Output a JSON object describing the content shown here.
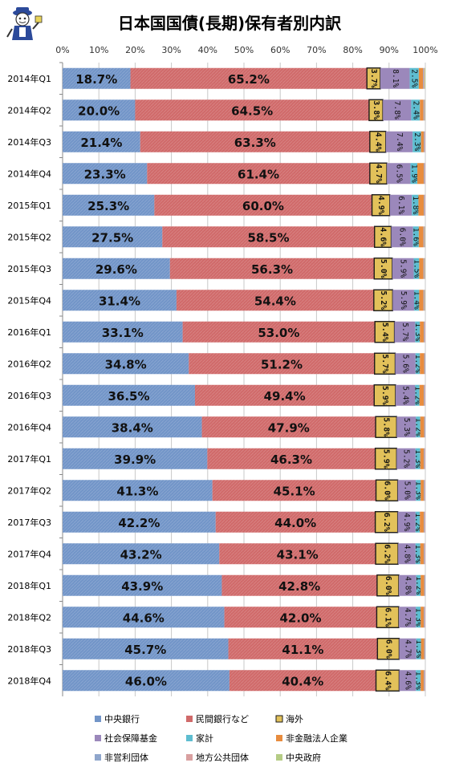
{
  "chart_data": {
    "type": "bar",
    "orientation": "horizontal",
    "stacked": true,
    "percent_stacked": true,
    "title": "日本国国債(長期)保有者別内訳",
    "xlim": [
      0,
      100
    ],
    "x_ticks": [
      "0%",
      "10%",
      "20%",
      "30%",
      "40%",
      "50%",
      "60%",
      "70%",
      "80%",
      "90%",
      "100%"
    ],
    "categories": [
      "2014年Q1",
      "2014年Q2",
      "2014年Q3",
      "2014年Q4",
      "2015年Q1",
      "2015年Q2",
      "2015年Q3",
      "2015年Q4",
      "2016年Q1",
      "2016年Q2",
      "2016年Q3",
      "2016年Q4",
      "2017年Q1",
      "2017年Q2",
      "2017年Q3",
      "2017年Q4",
      "2018年Q1",
      "2018年Q2",
      "2018年Q3",
      "2018年Q4"
    ],
    "series": [
      {
        "name": "中央銀行",
        "color": "#7295c8",
        "values": [
          18.7,
          20.0,
          21.4,
          23.3,
          25.3,
          27.5,
          29.6,
          31.4,
          33.1,
          34.8,
          36.5,
          38.4,
          39.9,
          41.3,
          42.2,
          43.2,
          43.9,
          44.6,
          45.7,
          46.0
        ]
      },
      {
        "name": "民間銀行など",
        "color": "#d06a6a",
        "values": [
          65.2,
          64.5,
          63.3,
          61.4,
          60.0,
          58.5,
          56.3,
          54.4,
          53.0,
          51.2,
          49.4,
          47.9,
          46.3,
          45.1,
          44.0,
          43.1,
          42.8,
          42.0,
          41.1,
          40.4
        ]
      },
      {
        "name": "海外",
        "color": "#e2c15a",
        "values": [
          3.7,
          3.8,
          4.4,
          4.7,
          4.9,
          4.6,
          5.0,
          5.2,
          5.4,
          5.7,
          5.9,
          5.8,
          5.9,
          6.0,
          6.2,
          6.2,
          6.0,
          6.1,
          6.0,
          6.4
        ]
      },
      {
        "name": "社会保障基金",
        "color": "#9b88bb",
        "values": [
          8.1,
          7.8,
          7.4,
          6.5,
          6.1,
          6.0,
          5.9,
          5.9,
          5.7,
          5.6,
          5.4,
          5.3,
          5.2,
          5.0,
          4.9,
          4.8,
          4.8,
          4.7,
          4.7,
          4.6
        ]
      },
      {
        "name": "家計",
        "color": "#5ebdd0",
        "values": [
          2.5,
          2.4,
          2.3,
          1.9,
          1.8,
          1.6,
          1.5,
          1.4,
          1.3,
          1.2,
          1.2,
          1.2,
          1.3,
          1.3,
          1.2,
          1.3,
          1.2,
          1.3,
          1.3,
          1.3
        ]
      },
      {
        "name": "非金融法人企業",
        "color": "#e88c3e",
        "values": [
          1.2,
          1.0,
          0.8,
          1.8,
          1.5,
          1.3,
          1.2,
          1.2,
          1.1,
          1.2,
          1.2,
          1.1,
          1.0,
          0.9,
          1.1,
          1.0,
          1.0,
          0.9,
          0.9,
          0.9
        ]
      },
      {
        "name": "非営利団体",
        "color": "#8fa6cc",
        "values": [
          0.2,
          0.2,
          0.2,
          0.2,
          0.2,
          0.2,
          0.2,
          0.2,
          0.2,
          0.2,
          0.2,
          0.2,
          0.2,
          0.2,
          0.2,
          0.2,
          0.2,
          0.2,
          0.2,
          0.2
        ]
      },
      {
        "name": "地方公共団体",
        "color": "#d9a0a0",
        "values": [
          0.2,
          0.2,
          0.2,
          0.2,
          0.2,
          0.2,
          0.2,
          0.2,
          0.2,
          0.2,
          0.2,
          0.2,
          0.2,
          0.2,
          0.2,
          0.2,
          0.2,
          0.2,
          0.2,
          0.2
        ]
      },
      {
        "name": "中央政府",
        "color": "#b5cc85",
        "values": [
          0.2,
          0.1,
          0.0,
          0.0,
          0.0,
          0.1,
          0.1,
          0.2,
          0.0,
          0.0,
          0.0,
          0.1,
          0.0,
          0.1,
          0.0,
          0.0,
          0.0,
          0.0,
          0.0,
          0.0
        ]
      }
    ],
    "labeled_series": [
      "中央銀行",
      "民間銀行など",
      "海外",
      "社会保障基金",
      "家計"
    ],
    "grid": true,
    "legend_position": "bottom"
  },
  "icon": "mascot-logo"
}
